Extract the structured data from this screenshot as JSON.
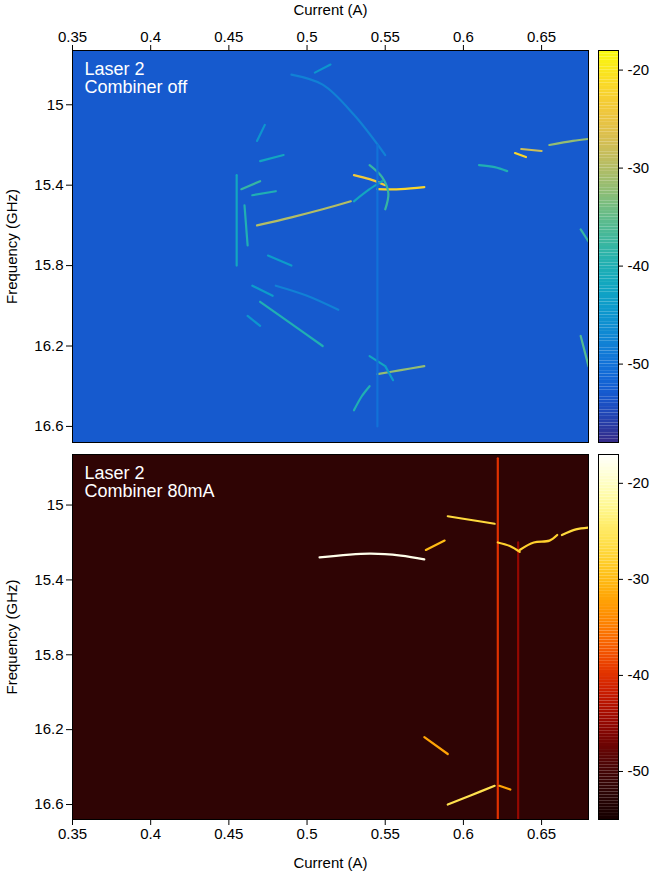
{
  "chart_data": [
    {
      "type": "heatmap",
      "annotations": [
        "Laser 2",
        "Combiner off"
      ],
      "x_label": "Current (A)",
      "y_label": "Frequency (GHz)",
      "xlim": [
        0.35,
        0.68
      ],
      "xticks": [
        0.35,
        0.4,
        0.45,
        0.5,
        0.55,
        0.6,
        0.65
      ],
      "ylim": [
        14.73,
        16.68
      ],
      "yticks": [
        15,
        15.4,
        15.8,
        16.2,
        16.6
      ],
      "clim": [
        -58,
        -18
      ],
      "cticks": [
        -20,
        -30,
        -40,
        -50
      ],
      "noise_floor": -53,
      "traces": [
        {
          "current": [
            0.468,
            0.49,
            0.51,
            0.528
          ],
          "frequency": [
            15.6,
            15.56,
            15.52,
            15.48
          ],
          "level": -30
        },
        {
          "current": [
            0.545,
            0.56,
            0.575
          ],
          "frequency": [
            15.42,
            15.42,
            15.41
          ],
          "level": -22
        },
        {
          "current": [
            0.53,
            0.54,
            0.55
          ],
          "frequency": [
            15.35,
            15.37,
            15.4
          ],
          "level": -24
        },
        {
          "current": [
            0.54,
            0.548,
            0.552,
            0.55
          ],
          "frequency": [
            15.3,
            15.36,
            15.44,
            15.52
          ],
          "level": -38
        },
        {
          "current": [
            0.53,
            0.54,
            0.548
          ],
          "frequency": [
            15.48,
            15.42,
            15.38
          ],
          "level": -42
        },
        {
          "current": [
            0.61,
            0.62,
            0.628
          ],
          "frequency": [
            15.3,
            15.31,
            15.33
          ],
          "level": -40
        },
        {
          "current": [
            0.633,
            0.64
          ],
          "frequency": [
            15.24,
            15.26
          ],
          "level": -22
        },
        {
          "current": [
            0.637,
            0.65
          ],
          "frequency": [
            15.22,
            15.23
          ],
          "level": -28
        },
        {
          "current": [
            0.655,
            0.67,
            0.68
          ],
          "frequency": [
            15.2,
            15.18,
            15.17
          ],
          "level": -32
        },
        {
          "current": [
            0.47,
            0.49,
            0.51
          ],
          "frequency": [
            15.98,
            16.09,
            16.2
          ],
          "level": -40
        },
        {
          "current": [
            0.545,
            0.56,
            0.575
          ],
          "frequency": [
            16.34,
            16.32,
            16.3
          ],
          "level": -32
        },
        {
          "current": [
            0.53,
            0.535,
            0.54
          ],
          "frequency": [
            16.52,
            16.45,
            16.4
          ],
          "level": -40
        },
        {
          "current": [
            0.54,
            0.55
          ],
          "frequency": [
            16.25,
            16.3
          ],
          "level": -42
        },
        {
          "current": [
            0.55,
            0.555
          ],
          "frequency": [
            16.3,
            16.37
          ],
          "level": -44
        },
        {
          "current": [
            0.455,
            0.455
          ],
          "frequency": [
            15.35,
            15.8
          ],
          "level": -42
        },
        {
          "current": [
            0.46,
            0.462
          ],
          "frequency": [
            15.5,
            15.7
          ],
          "level": -40
        },
        {
          "current": [
            0.458,
            0.47
          ],
          "frequency": [
            15.42,
            15.38
          ],
          "level": -38
        },
        {
          "current": [
            0.465,
            0.48
          ],
          "frequency": [
            15.45,
            15.43
          ],
          "level": -40
        },
        {
          "current": [
            0.47,
            0.485
          ],
          "frequency": [
            15.28,
            15.25
          ],
          "level": -42
        },
        {
          "current": [
            0.475,
            0.49
          ],
          "frequency": [
            15.75,
            15.8
          ],
          "level": -44
        },
        {
          "current": [
            0.465,
            0.478
          ],
          "frequency": [
            15.9,
            15.95
          ],
          "level": -44
        },
        {
          "current": [
            0.462,
            0.47
          ],
          "frequency": [
            16.05,
            16.1
          ],
          "level": -45
        },
        {
          "current": [
            0.468,
            0.473
          ],
          "frequency": [
            15.18,
            15.1
          ],
          "level": -45
        },
        {
          "current": [
            0.49,
            0.51,
            0.53,
            0.55
          ],
          "frequency": [
            14.85,
            14.9,
            15.05,
            15.25
          ],
          "level": -48
        },
        {
          "current": [
            0.48,
            0.5,
            0.52
          ],
          "frequency": [
            15.9,
            15.95,
            16.02
          ],
          "level": -48
        },
        {
          "current": [
            0.675,
            0.68
          ],
          "frequency": [
            15.62,
            15.68
          ],
          "level": -38
        },
        {
          "current": [
            0.675,
            0.68
          ],
          "frequency": [
            16.15,
            16.3
          ],
          "level": -36
        },
        {
          "current": [
            0.545,
            0.545
          ],
          "frequency": [
            15.2,
            16.6
          ],
          "level": -50
        },
        {
          "current": [
            0.505,
            0.515
          ],
          "frequency": [
            14.84,
            14.8
          ],
          "level": -45
        }
      ]
    },
    {
      "type": "heatmap",
      "annotations": [
        "Laser 2",
        "Combiner 80mA"
      ],
      "x_label": "Current (A)",
      "y_label": "Frequency (GHz)",
      "xlim": [
        0.35,
        0.68
      ],
      "xticks": [
        0.35,
        0.4,
        0.45,
        0.5,
        0.55,
        0.6,
        0.65
      ],
      "ylim": [
        14.73,
        16.68
      ],
      "yticks": [
        15,
        15.4,
        15.8,
        16.2,
        16.6
      ],
      "clim": [
        -55,
        -17
      ],
      "cticks": [
        -20,
        -30,
        -40,
        -50
      ],
      "noise_floor": -52,
      "traces": [
        {
          "current": [
            0.508,
            0.54,
            0.56,
            0.575
          ],
          "frequency": [
            15.28,
            15.26,
            15.27,
            15.29
          ],
          "level": -18
        },
        {
          "current": [
            0.576,
            0.588
          ],
          "frequency": [
            15.24,
            15.19
          ],
          "level": -30
        },
        {
          "current": [
            0.59,
            0.605,
            0.62
          ],
          "frequency": [
            15.06,
            15.08,
            15.1
          ],
          "level": -27
        },
        {
          "current": [
            0.622,
            0.622
          ],
          "frequency": [
            14.75,
            16.68
          ],
          "level": -40
        },
        {
          "current": [
            0.635,
            0.635
          ],
          "frequency": [
            15.2,
            16.68
          ],
          "level": -45
        },
        {
          "current": [
            0.622,
            0.63,
            0.636
          ],
          "frequency": [
            15.2,
            15.22,
            15.25
          ],
          "level": -28
        },
        {
          "current": [
            0.636,
            0.645,
            0.655,
            0.66
          ],
          "frequency": [
            15.24,
            15.2,
            15.19,
            15.16
          ],
          "level": -28
        },
        {
          "current": [
            0.663,
            0.672,
            0.68
          ],
          "frequency": [
            15.16,
            15.13,
            15.12
          ],
          "level": -27
        },
        {
          "current": [
            0.575,
            0.59
          ],
          "frequency": [
            16.24,
            16.33
          ],
          "level": -32
        },
        {
          "current": [
            0.59,
            0.605,
            0.62
          ],
          "frequency": [
            16.6,
            16.55,
            16.5
          ],
          "level": -26
        },
        {
          "current": [
            0.623,
            0.63
          ],
          "frequency": [
            16.5,
            16.52
          ],
          "level": -32
        }
      ]
    }
  ]
}
